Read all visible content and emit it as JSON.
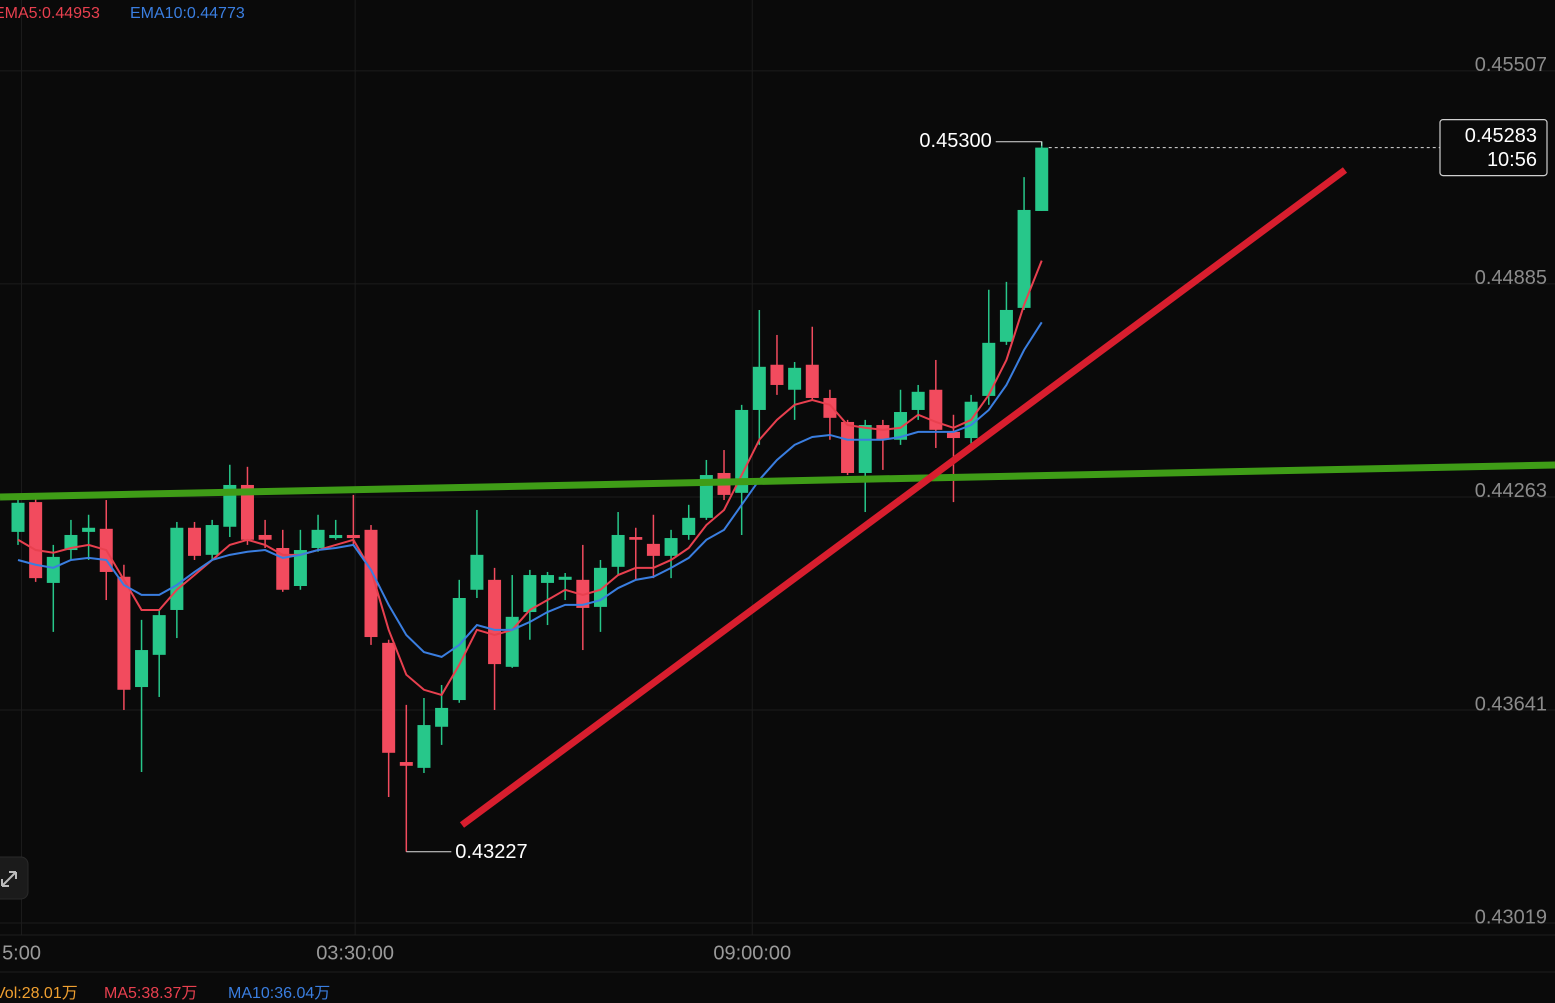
{
  "chart_data": {
    "type": "candlestick",
    "up_color": "#27c78a",
    "down_color": "#f24b5e",
    "xlim": [
      -1.02,
      87.08
    ],
    "ylim": [
      0.42984,
      0.45714
    ],
    "yticks": [
      0.45507,
      0.44885,
      0.44263,
      0.43641,
      0.43019
    ],
    "xticks": [
      {
        "value": 0.2,
        "label": "5:00"
      },
      {
        "value": 19.1,
        "label": "03:30:00"
      },
      {
        "value": 41.6,
        "label": "09:00:00"
      }
    ],
    "grid": true,
    "open": [
      0.44161,
      0.44248,
      0.44012,
      0.44108,
      0.44161,
      0.4417,
      0.4403,
      0.43708,
      0.43802,
      0.43933,
      0.44173,
      0.44094,
      0.44176,
      0.44298,
      0.44152,
      0.44114,
      0.44003,
      0.44114,
      0.44143,
      0.44152,
      0.44167,
      0.43837,
      0.43489,
      0.43472,
      0.43592,
      0.4367,
      0.43992,
      0.44021,
      0.43767,
      0.43927,
      0.44012,
      0.44021,
      0.44021,
      0.43942,
      0.44059,
      0.44146,
      0.44126,
      0.44091,
      0.44152,
      0.44202,
      0.44333,
      0.44275,
      0.44517,
      0.44649,
      0.44576,
      0.44649,
      0.44552,
      0.44482,
      0.44333,
      0.44473,
      0.4443,
      0.44517,
      0.44576,
      0.44453,
      0.44435,
      0.44558,
      0.44716,
      0.44815,
      0.45098
    ],
    "high": [
      0.44269,
      0.44263,
      0.44123,
      0.44196,
      0.44211,
      0.44254,
      0.44065,
      0.43904,
      0.43933,
      0.4419,
      0.4419,
      0.44196,
      0.44357,
      0.44351,
      0.44196,
      0.44167,
      0.44167,
      0.44211,
      0.44196,
      0.44269,
      0.44181,
      0.43846,
      0.43656,
      0.43676,
      0.43714,
      0.44021,
      0.44225,
      0.44056,
      0.44035,
      0.4405,
      0.44044,
      0.44041,
      0.44123,
      0.44079,
      0.44219,
      0.44173,
      0.44211,
      0.44167,
      0.4424,
      0.44371,
      0.444,
      0.44532,
      0.44809,
      0.44736,
      0.44657,
      0.4476,
      0.44576,
      0.44488,
      0.44488,
      0.44488,
      0.44576,
      0.4459,
      0.44663,
      0.44503,
      0.44561,
      0.44868,
      0.44891,
      0.45197,
      0.453
    ],
    "low": [
      0.44123,
      0.44015,
      0.43869,
      0.44079,
      0.44079,
      0.43962,
      0.43641,
      0.4346,
      0.43679,
      0.43851,
      0.44079,
      0.44079,
      0.44146,
      0.44123,
      0.44114,
      0.43986,
      0.43992,
      0.44103,
      0.44138,
      0.44123,
      0.43831,
      0.43387,
      0.43227,
      0.43457,
      0.43539,
      0.43662,
      0.43968,
      0.43641,
      0.43764,
      0.43846,
      0.43889,
      0.43962,
      0.43816,
      0.43869,
      0.44035,
      0.44021,
      0.44026,
      0.44026,
      0.44138,
      0.44196,
      0.44254,
      0.44152,
      0.44415,
      0.44561,
      0.44488,
      0.44546,
      0.4443,
      0.44327,
      0.44219,
      0.44342,
      0.44415,
      0.44488,
      0.44406,
      0.44248,
      0.44415,
      0.44532,
      0.44707,
      0.44809,
      0.45098
    ],
    "close": [
      0.44246,
      0.44026,
      0.44088,
      0.44152,
      0.44173,
      0.44044,
      0.437,
      0.43816,
      0.43918,
      0.44173,
      0.44091,
      0.44181,
      0.44298,
      0.44138,
      0.44138,
      0.43992,
      0.44108,
      0.44167,
      0.44152,
      0.44143,
      0.43854,
      0.43516,
      0.43478,
      0.43597,
      0.43647,
      0.43968,
      0.44094,
      0.43775,
      0.43913,
      0.44035,
      0.44035,
      0.4403,
      0.43939,
      0.44056,
      0.44152,
      0.44138,
      0.44091,
      0.44143,
      0.44202,
      0.44327,
      0.44269,
      0.44517,
      0.44643,
      0.4459,
      0.4464,
      0.44552,
      0.44494,
      0.44333,
      0.44473,
      0.4443,
      0.44511,
      0.4457,
      0.44459,
      0.44435,
      0.44541,
      0.44713,
      0.44809,
      0.45101,
      0.45283
    ],
    "series": [
      {
        "label": "EMA5:0.44953",
        "color": "#e8404f",
        "values": [
          0.44138,
          0.44108,
          0.441,
          0.44114,
          0.44123,
          0.44108,
          0.44021,
          0.43933,
          0.43933,
          0.43992,
          0.44035,
          0.44079,
          0.44123,
          0.44138,
          0.44123,
          0.44094,
          0.44094,
          0.44108,
          0.44123,
          0.44138,
          0.4405,
          0.43875,
          0.43744,
          0.437,
          0.43685,
          0.43773,
          0.43875,
          0.4386,
          0.43875,
          0.43933,
          0.43962,
          0.43992,
          0.43977,
          0.43992,
          0.44035,
          0.44056,
          0.44056,
          0.44079,
          0.44114,
          0.44181,
          0.44225,
          0.44327,
          0.4443,
          0.44488,
          0.44532,
          0.44546,
          0.44532,
          0.44473,
          0.44465,
          0.44459,
          0.44465,
          0.44503,
          0.44482,
          0.44465,
          0.44488,
          0.44561,
          0.44663,
          0.44824,
          0.44953
        ]
      },
      {
        "label": "EMA10:0.44773",
        "color": "#3a7ee0",
        "values": [
          0.44079,
          0.44065,
          0.44056,
          0.44079,
          0.44085,
          0.44079,
          0.44006,
          0.43977,
          0.43977,
          0.44006,
          0.44044,
          0.44079,
          0.44094,
          0.44103,
          0.44108,
          0.44085,
          0.44094,
          0.44108,
          0.44114,
          0.44123,
          0.4405,
          0.43948,
          0.4386,
          0.4381,
          0.43796,
          0.43831,
          0.43889,
          0.43875,
          0.43875,
          0.43898,
          0.43927,
          0.43948,
          0.43948,
          0.43962,
          0.43997,
          0.44021,
          0.4403,
          0.44056,
          0.44085,
          0.44138,
          0.44167,
          0.4424,
          0.44313,
          0.44371,
          0.44415,
          0.44438,
          0.44444,
          0.4443,
          0.4443,
          0.4443,
          0.44438,
          0.44453,
          0.44453,
          0.44453,
          0.44473,
          0.44517,
          0.4459,
          0.44692,
          0.44773
        ]
      }
    ],
    "high_label": {
      "value": 0.453,
      "label": "0.45300"
    },
    "low_label": 0.43227,
    "last_price": {
      "value": 0.45283,
      "countdown": "10:56"
    },
    "volume_legend": [
      {
        "label": "Vol:28.01万",
        "color": "#f0a030"
      },
      {
        "label": "MA5:38.37万",
        "color": "#e8404f"
      },
      {
        "label": "MA10:36.04万",
        "color": "#3a7ee0"
      }
    ]
  }
}
